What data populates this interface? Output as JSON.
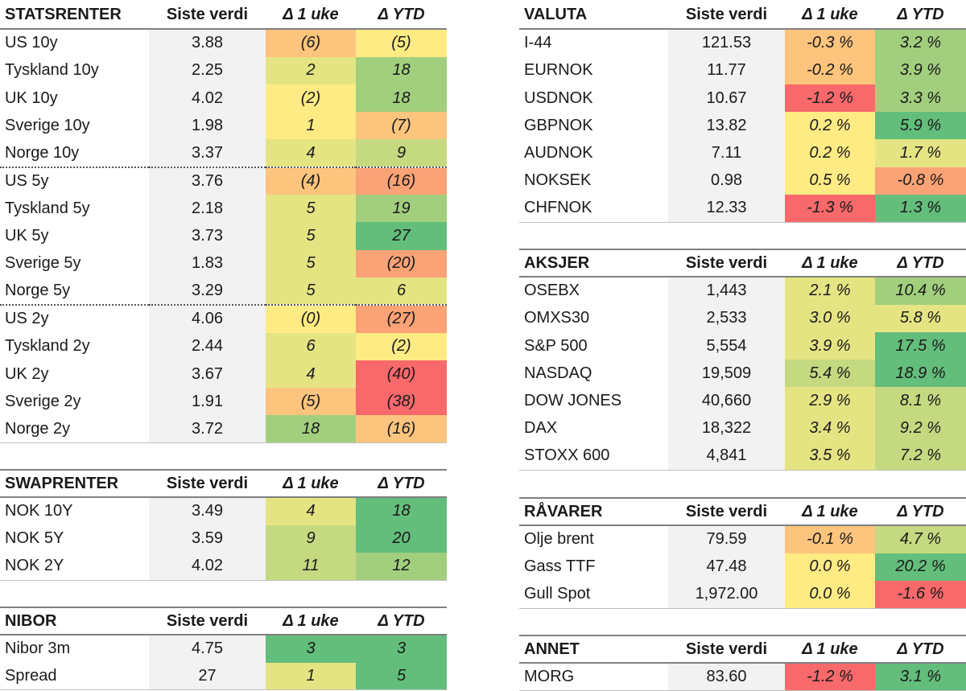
{
  "colors": {
    "red": "#f8696b",
    "orange": "#fba276",
    "light_orange": "#fdc47d",
    "yellow": "#ffeb84",
    "yellow_green": "#e5e483",
    "light_green": "#c4d980",
    "green": "#a2cf7e",
    "dark_green": "#63be7b"
  },
  "left": [
    {
      "id": "statsrenter",
      "header": [
        "STATSRENTER",
        "Siste verdi",
        "Δ 1 uke",
        "Δ YTD"
      ],
      "rows": [
        {
          "name": "US 10y",
          "value": "3.88",
          "week": "(6)",
          "week_c": "light_orange",
          "ytd": "(5)",
          "ytd_c": "yellow"
        },
        {
          "name": "Tyskland 10y",
          "value": "2.25",
          "week": "2",
          "week_c": "yellow_green",
          "ytd": "18",
          "ytd_c": "green"
        },
        {
          "name": "UK 10y",
          "value": "4.02",
          "week": "(2)",
          "week_c": "yellow",
          "ytd": "18",
          "ytd_c": "green"
        },
        {
          "name": "Sverige 10y",
          "value": "1.98",
          "week": "1",
          "week_c": "yellow",
          "ytd": "(7)",
          "ytd_c": "light_orange"
        },
        {
          "name": "Norge 10y",
          "value": "3.37",
          "week": "4",
          "week_c": "yellow_green",
          "ytd": "9",
          "ytd_c": "light_green"
        },
        {
          "name": "US 5y",
          "value": "3.76",
          "week": "(4)",
          "week_c": "light_orange",
          "ytd": "(16)",
          "ytd_c": "orange",
          "sep": true
        },
        {
          "name": "Tyskland 5y",
          "value": "2.18",
          "week": "5",
          "week_c": "yellow_green",
          "ytd": "19",
          "ytd_c": "green"
        },
        {
          "name": "UK 5y",
          "value": "3.73",
          "week": "5",
          "week_c": "yellow_green",
          "ytd": "27",
          "ytd_c": "dark_green"
        },
        {
          "name": "Sverige 5y",
          "value": "1.83",
          "week": "5",
          "week_c": "yellow_green",
          "ytd": "(20)",
          "ytd_c": "orange"
        },
        {
          "name": "Norge 5y",
          "value": "3.29",
          "week": "5",
          "week_c": "yellow_green",
          "ytd": "6",
          "ytd_c": "yellow_green"
        },
        {
          "name": "US 2y",
          "value": "4.06",
          "week": "(0)",
          "week_c": "yellow",
          "ytd": "(27)",
          "ytd_c": "orange",
          "sep": true
        },
        {
          "name": "Tyskland 2y",
          "value": "2.44",
          "week": "6",
          "week_c": "yellow_green",
          "ytd": "(2)",
          "ytd_c": "yellow"
        },
        {
          "name": "UK 2y",
          "value": "3.67",
          "week": "4",
          "week_c": "yellow_green",
          "ytd": "(40)",
          "ytd_c": "red"
        },
        {
          "name": "Sverige 2y",
          "value": "1.91",
          "week": "(5)",
          "week_c": "light_orange",
          "ytd": "(38)",
          "ytd_c": "red"
        },
        {
          "name": "Norge 2y",
          "value": "3.72",
          "week": "18",
          "week_c": "green",
          "ytd": "(16)",
          "ytd_c": "light_orange"
        }
      ]
    },
    {
      "id": "swaprenter",
      "header": [
        "SWAPRENTER",
        "Siste verdi",
        "Δ 1 uke",
        "Δ YTD"
      ],
      "rows": [
        {
          "name": "NOK 10Y",
          "value": "3.49",
          "week": "4",
          "week_c": "yellow_green",
          "ytd": "18",
          "ytd_c": "dark_green"
        },
        {
          "name": "NOK 5Y",
          "value": "3.59",
          "week": "9",
          "week_c": "light_green",
          "ytd": "20",
          "ytd_c": "dark_green"
        },
        {
          "name": "NOK 2Y",
          "value": "4.02",
          "week": "11",
          "week_c": "light_green",
          "ytd": "12",
          "ytd_c": "green"
        }
      ]
    },
    {
      "id": "nibor",
      "header": [
        "NIBOR",
        "Siste verdi",
        "Δ 1 uke",
        "Δ YTD"
      ],
      "rows": [
        {
          "name": "Nibor 3m",
          "value": "4.75",
          "week": "3",
          "week_c": "dark_green",
          "ytd": "3",
          "ytd_c": "dark_green"
        },
        {
          "name": "Spread",
          "value": "27",
          "week": "1",
          "week_c": "yellow_green",
          "ytd": "5",
          "ytd_c": "dark_green"
        }
      ]
    }
  ],
  "right": [
    {
      "id": "valuta",
      "header": [
        "VALUTA",
        "Siste verdi",
        "Δ 1 uke",
        "Δ YTD"
      ],
      "rows": [
        {
          "name": "I-44",
          "value": "121.53",
          "week": "-0.3 %",
          "week_c": "light_orange",
          "ytd": "3.2 %",
          "ytd_c": "green"
        },
        {
          "name": "EURNOK",
          "value": "11.77",
          "week": "-0.2 %",
          "week_c": "light_orange",
          "ytd": "3.9 %",
          "ytd_c": "green"
        },
        {
          "name": "USDNOK",
          "value": "10.67",
          "week": "-1.2 %",
          "week_c": "red",
          "ytd": "3.3 %",
          "ytd_c": "green"
        },
        {
          "name": "GBPNOK",
          "value": "13.82",
          "week": "0.2 %",
          "week_c": "yellow",
          "ytd": "5.9 %",
          "ytd_c": "dark_green"
        },
        {
          "name": "AUDNOK",
          "value": "7.11",
          "week": "0.2 %",
          "week_c": "yellow",
          "ytd": "1.7 %",
          "ytd_c": "yellow_green"
        },
        {
          "name": "NOKSEK",
          "value": "0.98",
          "week": "0.5 %",
          "week_c": "yellow",
          "ytd": "-0.8 %",
          "ytd_c": "orange"
        },
        {
          "name": "CHFNOK",
          "value": "12.33",
          "week": "-1.3 %",
          "week_c": "red",
          "ytd": "1.3 %",
          "ytd_c": "dark_green"
        }
      ]
    },
    {
      "id": "aksjer",
      "header": [
        "AKSJER",
        "Siste verdi",
        "Δ 1 uke",
        "Δ YTD"
      ],
      "rows": [
        {
          "name": "OSEBX",
          "value": "1,443",
          "week": "2.1 %",
          "week_c": "yellow_green",
          "ytd": "10.4 %",
          "ytd_c": "green"
        },
        {
          "name": "OMXS30",
          "value": "2,533",
          "week": "3.0 %",
          "week_c": "yellow_green",
          "ytd": "5.8 %",
          "ytd_c": "yellow_green"
        },
        {
          "name": "S&P 500",
          "value": "5,554",
          "week": "3.9 %",
          "week_c": "yellow_green",
          "ytd": "17.5 %",
          "ytd_c": "dark_green"
        },
        {
          "name": "NASDAQ",
          "value": "19,509",
          "week": "5.4 %",
          "week_c": "light_green",
          "ytd": "18.9 %",
          "ytd_c": "dark_green"
        },
        {
          "name": "DOW JONES",
          "value": "40,660",
          "week": "2.9 %",
          "week_c": "yellow_green",
          "ytd": "8.1 %",
          "ytd_c": "light_green"
        },
        {
          "name": "DAX",
          "value": "18,322",
          "week": "3.4 %",
          "week_c": "yellow_green",
          "ytd": "9.2 %",
          "ytd_c": "light_green"
        },
        {
          "name": "STOXX 600",
          "value": "4,841",
          "week": "3.5 %",
          "week_c": "yellow_green",
          "ytd": "7.2 %",
          "ytd_c": "light_green"
        }
      ]
    },
    {
      "id": "ravarer",
      "header": [
        "RÅVARER",
        "Siste verdi",
        "Δ 1 uke",
        "Δ YTD"
      ],
      "rows": [
        {
          "name": "Olje brent",
          "value": "79.59",
          "week": "-0.1 %",
          "week_c": "light_orange",
          "ytd": "4.7 %",
          "ytd_c": "light_green"
        },
        {
          "name": "Gass TTF",
          "value": "47.48",
          "week": "0.0 %",
          "week_c": "yellow",
          "ytd": "20.2 %",
          "ytd_c": "dark_green"
        },
        {
          "name": "Gull Spot",
          "value": "1,972.00",
          "week": "0.0 %",
          "week_c": "yellow",
          "ytd": "-1.6 %",
          "ytd_c": "red"
        }
      ]
    },
    {
      "id": "annet",
      "header": [
        "ANNET",
        "Siste verdi",
        "Δ 1 uke",
        "Δ YTD"
      ],
      "rows": [
        {
          "name": "MORG",
          "value": "83.60",
          "week": "-1.2 %",
          "week_c": "red",
          "ytd": "3.1 %",
          "ytd_c": "dark_green"
        }
      ]
    }
  ]
}
